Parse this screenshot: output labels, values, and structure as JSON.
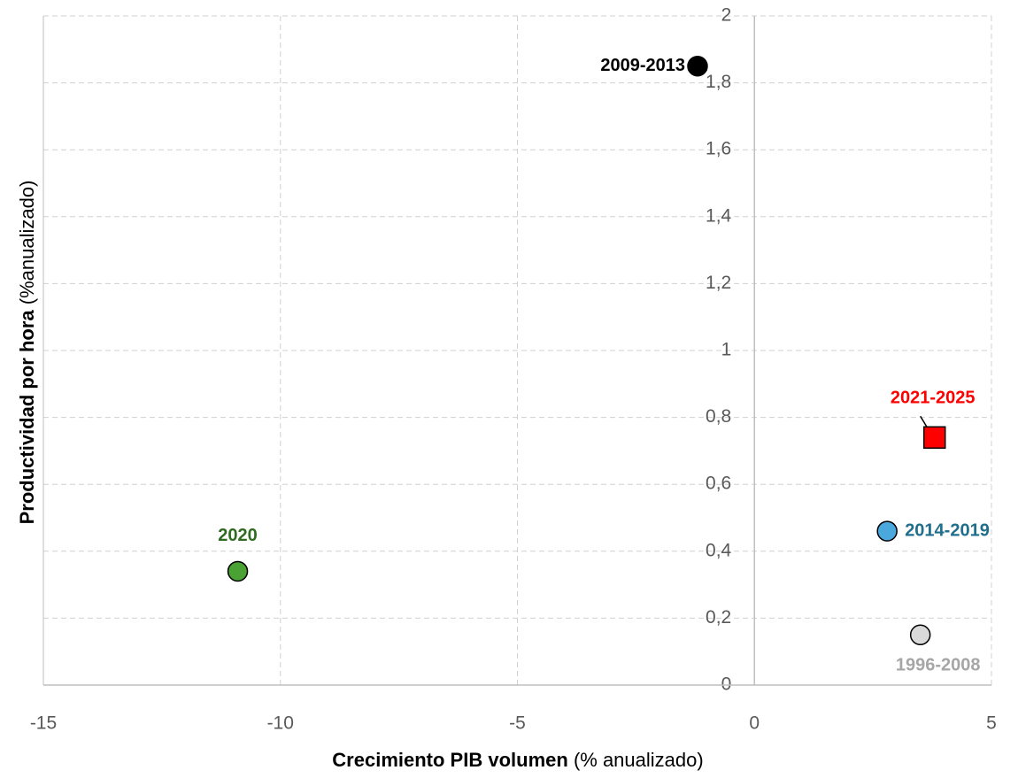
{
  "chart_data": {
    "type": "scatter",
    "x_label": [
      "Crecimiento PIB volumen",
      "(% anualizado)"
    ],
    "y_label": [
      "Productividad por hora",
      "(%anualizado)"
    ],
    "xlim": [
      -15,
      5
    ],
    "xticks": [
      -15,
      -10,
      -5,
      0,
      5
    ],
    "ylim": [
      0,
      2
    ],
    "yticks": [
      0,
      {
        "value": 0.2,
        "label": "0,2"
      },
      {
        "value": 0.4,
        "label": "0,4"
      },
      {
        "value": 0.6,
        "label": "0,6"
      },
      {
        "value": 0.8,
        "label": "0,8"
      },
      1,
      {
        "value": 1.2,
        "label": "1,2"
      },
      {
        "value": 1.4,
        "label": "1,4"
      },
      {
        "value": 1.6,
        "label": "1,6"
      },
      {
        "value": 1.8,
        "label": "1,8"
      },
      2
    ],
    "grid": true,
    "series": [
      {
        "name": "2009-2013",
        "color": "#000000",
        "label_color": "#000000",
        "marker": "circle",
        "x": [
          -1.2
        ],
        "values": [
          1.85
        ]
      },
      {
        "name": "2021-2025",
        "color": "#ff0000",
        "label_color": "#ff0000",
        "marker": "square",
        "x": [
          3.8
        ],
        "values": [
          0.74
        ]
      },
      {
        "name": "2014-2019",
        "color": "#4aa8dc",
        "label_color": "#1f6e8c",
        "marker": "circle",
        "x": [
          2.8
        ],
        "values": [
          0.46
        ]
      },
      {
        "name": "1996-2008",
        "color": "#d9d9d9",
        "label_color": "#a6a6a6",
        "marker": "circle",
        "x": [
          3.5
        ],
        "values": [
          0.15
        ]
      },
      {
        "name": "2020",
        "color": "#4aa234",
        "label_color": "#2e6b1f",
        "marker": "circle",
        "x": [
          -10.9
        ],
        "values": [
          0.34
        ]
      }
    ]
  }
}
